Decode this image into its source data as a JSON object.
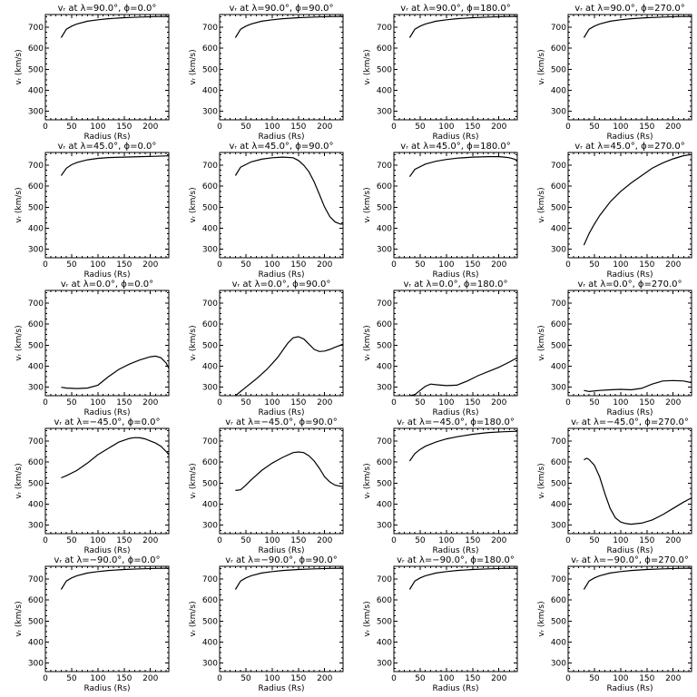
{
  "chart_data": [
    {
      "type": "line",
      "title": "vᵣ at λ=90.0°, ϕ=0.0°",
      "xlabel": "Radius (Rs)",
      "ylabel": "vᵣ (km/s)",
      "xlim": [
        0,
        235
      ],
      "ylim": [
        260,
        760
      ],
      "xticks": [
        0,
        50,
        100,
        150,
        200
      ],
      "yticks": [
        300,
        400,
        500,
        600,
        700
      ],
      "series": [
        {
          "x": [
            30,
            40,
            50,
            60,
            80,
            100,
            120,
            150,
            180,
            210,
            235
          ],
          "y": [
            650,
            690,
            705,
            715,
            728,
            735,
            740,
            745,
            748,
            750,
            751
          ]
        }
      ]
    },
    {
      "type": "line",
      "title": "vᵣ at λ=90.0°, ϕ=90.0°",
      "xlabel": "Radius (Rs)",
      "ylabel": "vᵣ (km/s)",
      "xlim": [
        0,
        235
      ],
      "ylim": [
        260,
        760
      ],
      "xticks": [
        0,
        50,
        100,
        150,
        200
      ],
      "yticks": [
        300,
        400,
        500,
        600,
        700
      ],
      "series": [
        {
          "x": [
            30,
            40,
            50,
            60,
            80,
            100,
            120,
            150,
            180,
            210,
            235
          ],
          "y": [
            650,
            690,
            705,
            715,
            728,
            735,
            740,
            745,
            748,
            750,
            751
          ]
        }
      ]
    },
    {
      "type": "line",
      "title": "vᵣ at λ=90.0°, ϕ=180.0°",
      "xlabel": "Radius (Rs)",
      "ylabel": "vᵣ (km/s)",
      "xlim": [
        0,
        235
      ],
      "ylim": [
        260,
        760
      ],
      "xticks": [
        0,
        50,
        100,
        150,
        200
      ],
      "yticks": [
        300,
        400,
        500,
        600,
        700
      ],
      "series": [
        {
          "x": [
            30,
            40,
            50,
            60,
            80,
            100,
            120,
            150,
            180,
            210,
            235
          ],
          "y": [
            650,
            690,
            705,
            715,
            728,
            735,
            740,
            745,
            748,
            750,
            751
          ]
        }
      ]
    },
    {
      "type": "line",
      "title": "vᵣ at λ=90.0°, ϕ=270.0°",
      "xlabel": "Radius (Rs)",
      "ylabel": "vᵣ (km/s)",
      "xlim": [
        0,
        235
      ],
      "ylim": [
        260,
        760
      ],
      "xticks": [
        0,
        50,
        100,
        150,
        200
      ],
      "yticks": [
        300,
        400,
        500,
        600,
        700
      ],
      "series": [
        {
          "x": [
            30,
            40,
            50,
            60,
            80,
            100,
            120,
            150,
            180,
            210,
            235
          ],
          "y": [
            650,
            690,
            705,
            715,
            728,
            735,
            740,
            745,
            748,
            750,
            751
          ]
        }
      ]
    },
    {
      "type": "line",
      "title": "vᵣ at λ=45.0°, ϕ=0.0°",
      "xlabel": "Radius (Rs)",
      "ylabel": "vᵣ (km/s)",
      "xlim": [
        0,
        235
      ],
      "ylim": [
        260,
        760
      ],
      "xticks": [
        0,
        50,
        100,
        150,
        200
      ],
      "yticks": [
        300,
        400,
        500,
        600,
        700
      ],
      "series": [
        {
          "x": [
            30,
            40,
            50,
            60,
            80,
            100,
            120,
            150,
            180,
            210,
            235
          ],
          "y": [
            650,
            685,
            702,
            712,
            725,
            732,
            736,
            738,
            740,
            742,
            744
          ]
        }
      ]
    },
    {
      "type": "line",
      "title": "vᵣ at λ=45.0°, ϕ=90.0°",
      "xlabel": "Radius (Rs)",
      "ylabel": "vᵣ (km/s)",
      "xlim": [
        0,
        235
      ],
      "ylim": [
        260,
        760
      ],
      "xticks": [
        0,
        50,
        100,
        150,
        200
      ],
      "yticks": [
        300,
        400,
        500,
        600,
        700
      ],
      "series": [
        {
          "x": [
            30,
            40,
            60,
            80,
            100,
            120,
            140,
            150,
            160,
            170,
            180,
            190,
            200,
            210,
            220,
            230,
            235
          ],
          "y": [
            650,
            690,
            715,
            728,
            735,
            738,
            735,
            722,
            700,
            668,
            620,
            560,
            500,
            455,
            430,
            420,
            420
          ]
        }
      ]
    },
    {
      "type": "line",
      "title": "vᵣ at λ=45.0°, ϕ=180.0°",
      "xlabel": "Radius (Rs)",
      "ylabel": "vᵣ (km/s)",
      "xlim": [
        0,
        235
      ],
      "ylim": [
        260,
        760
      ],
      "xticks": [
        0,
        50,
        100,
        150,
        200
      ],
      "yticks": [
        300,
        400,
        500,
        600,
        700
      ],
      "series": [
        {
          "x": [
            30,
            40,
            60,
            80,
            100,
            120,
            150,
            180,
            200,
            210,
            220,
            230,
            235
          ],
          "y": [
            645,
            680,
            705,
            718,
            727,
            733,
            738,
            740,
            740,
            738,
            735,
            728,
            718
          ]
        }
      ]
    },
    {
      "type": "line",
      "title": "vᵣ at λ=45.0°, ϕ=270.0°",
      "xlabel": "Radius (Rs)",
      "ylabel": "vᵣ (km/s)",
      "xlim": [
        0,
        235
      ],
      "ylim": [
        260,
        760
      ],
      "xticks": [
        0,
        50,
        100,
        150,
        200
      ],
      "yticks": [
        300,
        400,
        500,
        600,
        700
      ],
      "series": [
        {
          "x": [
            30,
            40,
            50,
            60,
            80,
            100,
            120,
            140,
            160,
            180,
            200,
            220,
            235
          ],
          "y": [
            320,
            375,
            420,
            460,
            525,
            575,
            615,
            650,
            685,
            710,
            730,
            745,
            750
          ]
        }
      ]
    },
    {
      "type": "line",
      "title": "vᵣ at λ=0.0°, ϕ=0.0°",
      "xlabel": "Radius (Rs)",
      "ylabel": "vᵣ (km/s)",
      "xlim": [
        0,
        235
      ],
      "ylim": [
        260,
        760
      ],
      "xticks": [
        0,
        50,
        100,
        150,
        200
      ],
      "yticks": [
        300,
        400,
        500,
        600,
        700
      ],
      "series": [
        {
          "x": [
            30,
            40,
            60,
            80,
            100,
            120,
            140,
            160,
            180,
            200,
            210,
            220,
            230,
            235
          ],
          "y": [
            300,
            296,
            294,
            296,
            310,
            350,
            385,
            410,
            430,
            445,
            448,
            440,
            415,
            390
          ]
        }
      ]
    },
    {
      "type": "line",
      "title": "vᵣ at λ=0.0°, ϕ=90.0°",
      "xlabel": "Radius (Rs)",
      "ylabel": "vᵣ (km/s)",
      "xlim": [
        0,
        235
      ],
      "ylim": [
        260,
        760
      ],
      "xticks": [
        0,
        50,
        100,
        150,
        200
      ],
      "yticks": [
        300,
        400,
        500,
        600,
        700
      ],
      "series": [
        {
          "x": [
            30,
            50,
            70,
            90,
            110,
            130,
            140,
            150,
            160,
            170,
            180,
            190,
            200,
            210,
            220,
            235
          ],
          "y": [
            260,
            300,
            340,
            385,
            440,
            510,
            535,
            540,
            530,
            505,
            480,
            470,
            472,
            480,
            490,
            505
          ]
        }
      ]
    },
    {
      "type": "line",
      "title": "vᵣ at λ=0.0°, ϕ=180.0°",
      "xlabel": "Radius (Rs)",
      "ylabel": "vᵣ (km/s)",
      "xlim": [
        0,
        235
      ],
      "ylim": [
        260,
        760
      ],
      "xticks": [
        0,
        50,
        100,
        150,
        200
      ],
      "yticks": [
        300,
        400,
        500,
        600,
        700
      ],
      "series": [
        {
          "x": [
            30,
            40,
            50,
            60,
            70,
            80,
            90,
            100,
            120,
            140,
            160,
            180,
            200,
            220,
            235
          ],
          "y": [
            260,
            265,
            285,
            305,
            315,
            312,
            310,
            308,
            310,
            330,
            355,
            375,
            395,
            420,
            440
          ]
        }
      ]
    },
    {
      "type": "line",
      "title": "vᵣ at λ=0.0°, ϕ=270.0°",
      "xlabel": "Radius (Rs)",
      "ylabel": "vᵣ (km/s)",
      "xlim": [
        0,
        235
      ],
      "ylim": [
        260,
        760
      ],
      "xticks": [
        0,
        50,
        100,
        150,
        200
      ],
      "yticks": [
        300,
        400,
        500,
        600,
        700
      ],
      "series": [
        {
          "x": [
            30,
            40,
            60,
            80,
            100,
            120,
            140,
            160,
            180,
            200,
            220,
            235
          ],
          "y": [
            285,
            280,
            285,
            288,
            290,
            288,
            295,
            315,
            330,
            332,
            330,
            322
          ]
        }
      ]
    },
    {
      "type": "line",
      "title": "vᵣ at λ=−45.0°, ϕ=0.0°",
      "xlabel": "Radius (Rs)",
      "ylabel": "vᵣ (km/s)",
      "xlim": [
        0,
        235
      ],
      "ylim": [
        260,
        760
      ],
      "xticks": [
        0,
        50,
        100,
        150,
        200
      ],
      "yticks": [
        300,
        400,
        500,
        600,
        700
      ],
      "series": [
        {
          "x": [
            30,
            40,
            60,
            80,
            100,
            120,
            140,
            160,
            170,
            180,
            190,
            200,
            210,
            220,
            230,
            235
          ],
          "y": [
            525,
            535,
            560,
            595,
            635,
            665,
            695,
            712,
            716,
            715,
            710,
            700,
            690,
            675,
            650,
            635
          ]
        }
      ]
    },
    {
      "type": "line",
      "title": "vᵣ at λ=−45.0°, ϕ=90.0°",
      "xlabel": "Radius (Rs)",
      "ylabel": "vᵣ (km/s)",
      "xlim": [
        0,
        235
      ],
      "ylim": [
        260,
        760
      ],
      "xticks": [
        0,
        50,
        100,
        150,
        200
      ],
      "yticks": [
        300,
        400,
        500,
        600,
        700
      ],
      "series": [
        {
          "x": [
            30,
            40,
            50,
            60,
            80,
            100,
            120,
            140,
            150,
            160,
            170,
            180,
            190,
            200,
            210,
            220,
            230,
            235
          ],
          "y": [
            465,
            468,
            490,
            515,
            560,
            595,
            622,
            645,
            648,
            645,
            630,
            605,
            570,
            530,
            505,
            490,
            485,
            485
          ]
        }
      ]
    },
    {
      "type": "line",
      "title": "vᵣ at λ=−45.0°, ϕ=180.0°",
      "xlabel": "Radius (Rs)",
      "ylabel": "vᵣ (km/s)",
      "xlim": [
        0,
        235
      ],
      "ylim": [
        260,
        760
      ],
      "xticks": [
        0,
        50,
        100,
        150,
        200
      ],
      "yticks": [
        300,
        400,
        500,
        600,
        700
      ],
      "series": [
        {
          "x": [
            30,
            40,
            50,
            60,
            80,
            100,
            120,
            150,
            180,
            210,
            235
          ],
          "y": [
            605,
            640,
            660,
            675,
            695,
            710,
            720,
            732,
            740,
            744,
            746
          ]
        }
      ]
    },
    {
      "type": "line",
      "title": "vᵣ at λ=−45.0°, ϕ=270.0°",
      "xlabel": "Radius (Rs)",
      "ylabel": "vᵣ (km/s)",
      "xlim": [
        0,
        235
      ],
      "ylim": [
        260,
        760
      ],
      "xticks": [
        0,
        50,
        100,
        150,
        200
      ],
      "yticks": [
        300,
        400,
        500,
        600,
        700
      ],
      "series": [
        {
          "x": [
            30,
            35,
            40,
            50,
            60,
            70,
            80,
            90,
            100,
            110,
            120,
            140,
            160,
            180,
            200,
            220,
            235
          ],
          "y": [
            610,
            618,
            612,
            585,
            530,
            450,
            380,
            335,
            315,
            308,
            305,
            310,
            325,
            350,
            380,
            410,
            430
          ]
        }
      ]
    },
    {
      "type": "line",
      "title": "vᵣ at λ=−90.0°, ϕ=0.0°",
      "xlabel": "Radius (Rs)",
      "ylabel": "vᵣ (km/s)",
      "xlim": [
        0,
        235
      ],
      "ylim": [
        260,
        760
      ],
      "xticks": [
        0,
        50,
        100,
        150,
        200
      ],
      "yticks": [
        300,
        400,
        500,
        600,
        700
      ],
      "series": [
        {
          "x": [
            30,
            40,
            50,
            60,
            80,
            100,
            120,
            150,
            180,
            210,
            235
          ],
          "y": [
            650,
            690,
            705,
            715,
            728,
            735,
            740,
            745,
            748,
            750,
            751
          ]
        }
      ]
    },
    {
      "type": "line",
      "title": "vᵣ at λ=−90.0°, ϕ=90.0°",
      "xlabel": "Radius (Rs)",
      "ylabel": "vᵣ (km/s)",
      "xlim": [
        0,
        235
      ],
      "ylim": [
        260,
        760
      ],
      "xticks": [
        0,
        50,
        100,
        150,
        200
      ],
      "yticks": [
        300,
        400,
        500,
        600,
        700
      ],
      "series": [
        {
          "x": [
            30,
            40,
            50,
            60,
            80,
            100,
            120,
            150,
            180,
            210,
            235
          ],
          "y": [
            650,
            690,
            705,
            715,
            728,
            735,
            740,
            745,
            748,
            750,
            751
          ]
        }
      ]
    },
    {
      "type": "line",
      "title": "vᵣ at λ=−90.0°, ϕ=180.0°",
      "xlabel": "Radius (Rs)",
      "ylabel": "vᵣ (km/s)",
      "xlim": [
        0,
        235
      ],
      "ylim": [
        260,
        760
      ],
      "xticks": [
        0,
        50,
        100,
        150,
        200
      ],
      "yticks": [
        300,
        400,
        500,
        600,
        700
      ],
      "series": [
        {
          "x": [
            30,
            40,
            50,
            60,
            80,
            100,
            120,
            150,
            180,
            210,
            235
          ],
          "y": [
            650,
            690,
            705,
            715,
            728,
            735,
            740,
            745,
            748,
            750,
            751
          ]
        }
      ]
    },
    {
      "type": "line",
      "title": "vᵣ at λ=−90.0°, ϕ=270.0°",
      "xlabel": "Radius (Rs)",
      "ylabel": "vᵣ (km/s)",
      "xlim": [
        0,
        235
      ],
      "ylim": [
        260,
        760
      ],
      "xticks": [
        0,
        50,
        100,
        150,
        200
      ],
      "yticks": [
        300,
        400,
        500,
        600,
        700
      ],
      "series": [
        {
          "x": [
            30,
            40,
            50,
            60,
            80,
            100,
            120,
            150,
            180,
            210,
            235
          ],
          "y": [
            650,
            690,
            705,
            715,
            728,
            735,
            740,
            745,
            748,
            750,
            751
          ]
        }
      ]
    }
  ]
}
